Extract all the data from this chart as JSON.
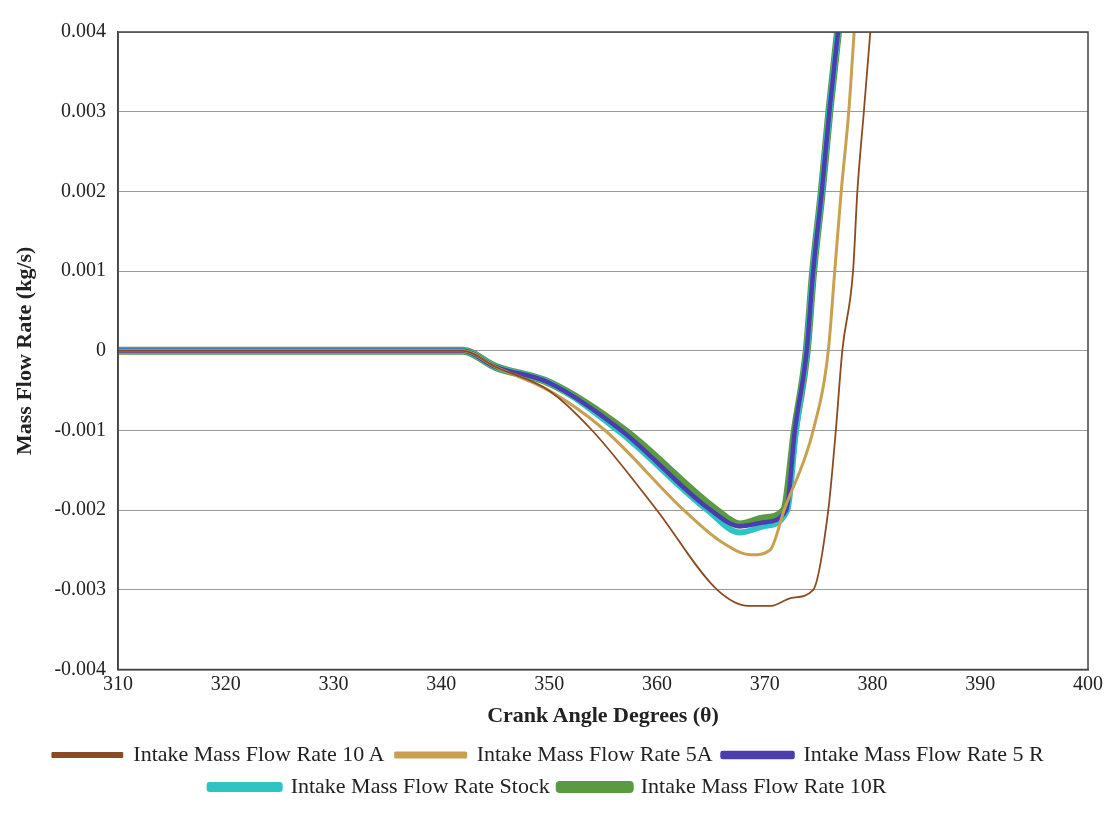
{
  "chart_data": {
    "type": "line",
    "xlabel": "Crank Angle Degrees (θ)",
    "ylabel": "Mass Flow Rate (kg/s)",
    "xlim": [
      310,
      400
    ],
    "xticks": [
      310,
      320,
      330,
      340,
      350,
      360,
      370,
      380,
      390,
      400
    ],
    "ylim": [
      -0.004,
      0.004
    ],
    "yticks": [
      -0.004,
      -0.003,
      -0.002,
      -0.001,
      0,
      0.001,
      0.002,
      0.003,
      0.004
    ],
    "grid": "y",
    "legend": "bottom",
    "marker": "none",
    "line_style": "solid",
    "series": [
      {
        "name": "Intake Mass Flow Rate 10 A",
        "color": "#8b4a1f",
        "x": [
          310,
          340,
          342,
          345,
          350,
          354,
          360,
          365.6,
          368.5,
          370.6,
          372.5,
          374.5,
          375.9,
          376.6,
          377.2,
          378.2,
          378.6,
          379.2,
          379.8
        ],
        "values": [
          0,
          0,
          0,
          -0.0002,
          -0.0005,
          -0.001,
          -0.002,
          -0.003,
          -0.0032,
          -0.0032,
          -0.0031,
          -0.003,
          -0.002,
          -0.001,
          0,
          0.001,
          0.002,
          0.003,
          0.004
        ]
      },
      {
        "name": "Intake Mass Flow Rate 5A",
        "color": "#c8a050",
        "x": [
          310,
          340,
          342,
          345,
          350,
          355.2,
          362.5,
          366,
          368.8,
          370.5,
          371.8,
          374.5,
          375.9,
          376.5,
          377.1,
          377.8,
          378.3
        ],
        "values": [
          0,
          0,
          0,
          -0.0002,
          -0.0005,
          -0.001,
          -0.002,
          -0.0024,
          -0.00256,
          -0.0025,
          -0.002,
          -0.001,
          0,
          0.001,
          0.002,
          0.003,
          0.004
        ]
      },
      {
        "name": "Intake Mass Flow Rate Stock",
        "color": "#2ec4c4",
        "x": [
          310,
          340,
          342,
          345,
          350,
          356.4,
          364.7,
          367.7,
          370,
          372.1,
          372.9,
          373.9,
          374.5,
          375.3,
          376,
          376.8
        ],
        "values": [
          0,
          0,
          0,
          -0.0002,
          -0.0004,
          -0.001,
          -0.002,
          -0.00228,
          -0.0022,
          -0.002,
          -0.001,
          0,
          0.001,
          0.002,
          0.003,
          0.004
        ]
      },
      {
        "name": "Intake Mass Flow Rate 5 R",
        "color": "#4b3cb0",
        "x": [
          310,
          340,
          342,
          345,
          350,
          356.7,
          365,
          367.7,
          370,
          372,
          372.8,
          373.9,
          374.5,
          375.3,
          376,
          376.8
        ],
        "values": [
          0,
          0,
          0,
          -0.0002,
          -0.0004,
          -0.001,
          -0.002,
          -0.0022,
          -0.00215,
          -0.002,
          -0.001,
          0,
          0.001,
          0.002,
          0.003,
          0.004
        ]
      },
      {
        "name": "Intake Mass Flow Rate 10R",
        "color": "#5a9a40",
        "x": [
          310,
          340,
          342,
          345,
          350,
          357,
          365.5,
          367.7,
          370,
          371.8,
          372.8,
          373.9,
          374.5,
          375.3,
          376,
          376.8
        ],
        "values": [
          0,
          0,
          0,
          -0.0002,
          -0.0004,
          -0.001,
          -0.002,
          -0.00218,
          -0.0021,
          -0.002,
          -0.001,
          0,
          0.001,
          0.002,
          0.003,
          0.004
        ]
      }
    ]
  }
}
